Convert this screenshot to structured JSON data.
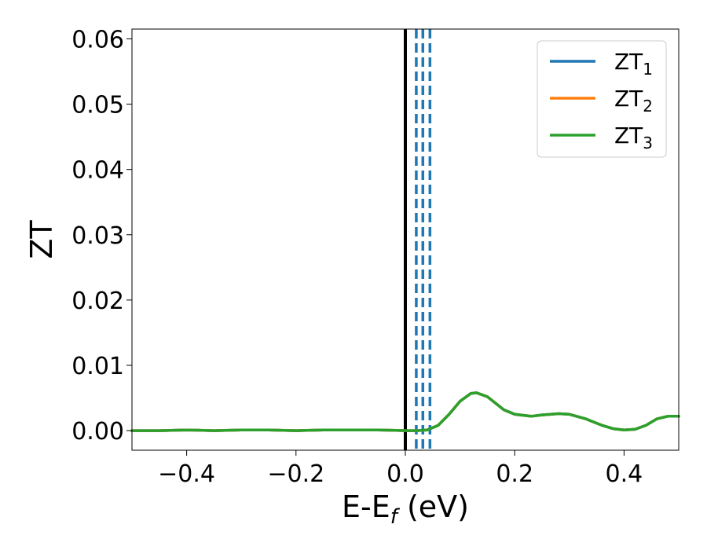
{
  "chart_data": {
    "type": "line",
    "xlabel": "E-E",
    "xlabel_sub": "f",
    "xlabel_unit": " (eV)",
    "ylabel": "ZT",
    "xlim": [
      -0.5,
      0.5
    ],
    "ylim": [
      -0.003,
      0.0615
    ],
    "xticks": [
      {
        "value": -0.4,
        "label": "−0.4"
      },
      {
        "value": -0.2,
        "label": "−0.2"
      },
      {
        "value": 0.0,
        "label": "0.0"
      },
      {
        "value": 0.2,
        "label": "0.2"
      },
      {
        "value": 0.4,
        "label": "0.4"
      }
    ],
    "yticks": [
      {
        "value": 0.0,
        "label": "0.00"
      },
      {
        "value": 0.01,
        "label": "0.01"
      },
      {
        "value": 0.02,
        "label": "0.02"
      },
      {
        "value": 0.03,
        "label": "0.03"
      },
      {
        "value": 0.04,
        "label": "0.04"
      },
      {
        "value": 0.05,
        "label": "0.05"
      },
      {
        "value": 0.06,
        "label": "0.06"
      }
    ],
    "legend_position": "top-right",
    "series": [
      {
        "name": "ZT",
        "sub": "1",
        "color": "#1f77b4",
        "x": [
          -0.5,
          -0.45,
          -0.4,
          -0.35,
          -0.3,
          -0.25,
          -0.2,
          -0.15,
          -0.1,
          -0.05,
          0.0,
          0.02,
          0.04,
          0.06,
          0.08,
          0.1,
          0.12,
          0.13,
          0.15,
          0.18,
          0.2,
          0.23,
          0.25,
          0.28,
          0.3,
          0.33,
          0.36,
          0.38,
          0.4,
          0.42,
          0.44,
          0.46,
          0.48,
          0.5
        ],
        "y": [
          0.0,
          0.0,
          0.0001,
          0.0,
          0.0001,
          0.0001,
          0.0,
          0.0001,
          0.0001,
          0.0001,
          0.0,
          0.0,
          0.0001,
          0.0008,
          0.0025,
          0.0045,
          0.0057,
          0.0058,
          0.0052,
          0.0032,
          0.0025,
          0.0022,
          0.0024,
          0.0026,
          0.0025,
          0.0018,
          0.0008,
          0.0003,
          0.0001,
          0.0002,
          0.0008,
          0.0018,
          0.0022,
          0.0022
        ]
      },
      {
        "name": "ZT",
        "sub": "2",
        "color": "#ff7f0e",
        "x": [
          -0.5,
          -0.45,
          -0.4,
          -0.35,
          -0.3,
          -0.25,
          -0.2,
          -0.15,
          -0.1,
          -0.05,
          0.0,
          0.02,
          0.04,
          0.06,
          0.08,
          0.1,
          0.12,
          0.13,
          0.15,
          0.18,
          0.2,
          0.23,
          0.25,
          0.28,
          0.3,
          0.33,
          0.36,
          0.38,
          0.4,
          0.42,
          0.44,
          0.46,
          0.48,
          0.5
        ],
        "y": [
          0.0,
          0.0,
          0.0001,
          0.0,
          0.0001,
          0.0001,
          0.0,
          0.0001,
          0.0001,
          0.0001,
          0.0,
          0.0,
          0.0001,
          0.0008,
          0.0025,
          0.0045,
          0.0057,
          0.0058,
          0.0052,
          0.0032,
          0.0025,
          0.0022,
          0.0024,
          0.0026,
          0.0025,
          0.0018,
          0.0008,
          0.0003,
          0.0001,
          0.0002,
          0.0008,
          0.0018,
          0.0022,
          0.0022
        ]
      },
      {
        "name": "ZT",
        "sub": "3",
        "color": "#2ca02c",
        "x": [
          -0.5,
          -0.45,
          -0.4,
          -0.35,
          -0.3,
          -0.25,
          -0.2,
          -0.15,
          -0.1,
          -0.05,
          0.0,
          0.02,
          0.04,
          0.06,
          0.08,
          0.1,
          0.12,
          0.13,
          0.15,
          0.18,
          0.2,
          0.23,
          0.25,
          0.28,
          0.3,
          0.33,
          0.36,
          0.38,
          0.4,
          0.42,
          0.44,
          0.46,
          0.48,
          0.5
        ],
        "y": [
          0.0,
          0.0,
          0.0001,
          0.0,
          0.0001,
          0.0001,
          0.0,
          0.0001,
          0.0001,
          0.0001,
          0.0,
          0.0,
          0.0001,
          0.0008,
          0.0025,
          0.0045,
          0.0057,
          0.0058,
          0.0052,
          0.0032,
          0.0025,
          0.0022,
          0.0024,
          0.0026,
          0.0025,
          0.0018,
          0.0008,
          0.0003,
          0.0001,
          0.0002,
          0.0008,
          0.0018,
          0.0022,
          0.0022
        ]
      }
    ],
    "vlines": [
      {
        "x": 0.0,
        "style": "solid",
        "color": "#000000"
      },
      {
        "x": 0.02,
        "style": "dashed",
        "color": "#1f77b4"
      },
      {
        "x": 0.032,
        "style": "dashed",
        "color": "#1f77b4"
      },
      {
        "x": 0.045,
        "style": "dashed",
        "color": "#1f77b4"
      }
    ]
  }
}
